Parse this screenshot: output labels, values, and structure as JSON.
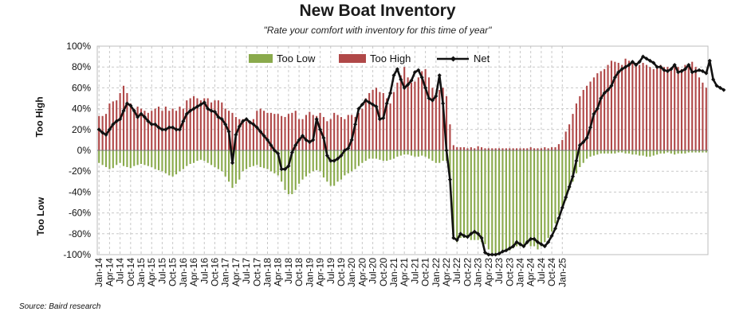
{
  "chart_data": {
    "type": "bar+line",
    "title": "New Boat Inventory",
    "subtitle": "\"Rate your comfort with inventory for this time of year\"",
    "ylabel_top": "Too High",
    "ylabel_bottom": "Too Low",
    "source": "Source: Baird research",
    "ylim": [
      -100,
      100
    ],
    "yticks": [
      100,
      80,
      60,
      40,
      20,
      0,
      -20,
      -40,
      -60,
      -80,
      -100
    ],
    "ytick_labels": [
      "100%",
      "80%",
      "60%",
      "40%",
      "20%",
      "0%",
      "-20%",
      "-40%",
      "-60%",
      "-80%",
      "-100%"
    ],
    "xtick_labels": [
      "Jan-14",
      "Apr-14",
      "Jul-14",
      "Oct-14",
      "Jan-15",
      "Apr-15",
      "Jul-15",
      "Oct-15",
      "Jan-16",
      "Apr-16",
      "Jul-16",
      "Oct-16",
      "Jan-17",
      "Apr-17",
      "Jul-17",
      "Oct-17",
      "Jan-18",
      "Apr-18",
      "Jul-18",
      "Oct-18",
      "Jan-19",
      "Apr-19",
      "Jul-19",
      "Oct-19",
      "Jan-20",
      "Apr-20",
      "Jul-20",
      "Oct-20",
      "Jan-21",
      "Apr-21",
      "Jul-21",
      "Oct-21",
      "Jan-22",
      "Apr-22",
      "Jul-22",
      "Oct-22",
      "Jan-23",
      "Apr-23",
      "Jul-23",
      "Oct-23",
      "Jan-24",
      "Apr-24",
      "Jul-24",
      "Oct-24",
      "Jan-25"
    ],
    "legend": [
      "Too Low",
      "Too High",
      "Net"
    ],
    "grid": true,
    "colors": {
      "too_low": "#8aaa4c",
      "too_high": "#b04848",
      "net": "#111111",
      "grid": "#c8c8c8"
    },
    "start": "Jan-14",
    "x_step": "month",
    "series": [
      {
        "name": "Too High",
        "values": [
          33,
          33,
          35,
          45,
          47,
          48,
          55,
          62,
          55,
          45,
          40,
          42,
          40,
          38,
          36,
          38,
          40,
          42,
          38,
          42,
          38,
          40,
          38,
          42,
          40,
          48,
          50,
          52,
          50,
          48,
          50,
          50,
          46,
          48,
          48,
          46,
          40,
          38,
          36,
          32,
          30,
          30,
          28,
          26,
          30,
          38,
          40,
          38,
          36,
          36,
          35,
          35,
          33,
          32,
          35,
          36,
          38,
          30,
          30,
          34,
          37,
          34,
          33,
          36,
          32,
          28,
          30,
          36,
          34,
          32,
          30,
          34,
          34,
          32,
          36,
          40,
          50,
          55,
          58,
          60,
          56,
          55,
          50,
          45,
          56,
          65,
          72,
          80,
          70,
          65,
          66,
          70,
          76,
          78,
          70,
          60,
          55,
          58,
          60,
          52,
          25,
          5,
          3,
          3,
          3,
          2,
          3,
          2,
          4,
          3,
          2,
          2,
          2,
          2,
          2,
          2,
          2,
          2,
          2,
          2,
          2,
          2,
          2,
          3,
          2,
          2,
          2,
          3,
          2,
          3,
          3,
          6,
          10,
          18,
          25,
          35,
          45,
          52,
          58,
          62,
          66,
          70,
          74,
          76,
          78,
          82,
          86,
          85,
          84,
          82,
          88,
          86,
          85,
          84,
          82,
          84,
          82,
          80,
          78,
          80,
          82,
          80,
          80,
          78,
          80,
          80,
          78,
          82,
          80,
          85,
          80,
          70,
          65,
          60
        ]
      },
      {
        "name": "Too Low",
        "values": [
          -12,
          -14,
          -16,
          -18,
          -17,
          -14,
          -12,
          -15,
          -16,
          -17,
          -15,
          -14,
          -13,
          -14,
          -15,
          -16,
          -18,
          -19,
          -20,
          -22,
          -24,
          -25,
          -23,
          -20,
          -18,
          -15,
          -13,
          -12,
          -10,
          -9,
          -10,
          -12,
          -14,
          -16,
          -18,
          -20,
          -25,
          -30,
          -36,
          -32,
          -28,
          -20,
          -18,
          -16,
          -15,
          -14,
          -16,
          -17,
          -18,
          -20,
          -22,
          -24,
          -30,
          -38,
          -42,
          -42,
          -38,
          -32,
          -28,
          -25,
          -22,
          -20,
          -19,
          -20,
          -26,
          -30,
          -34,
          -34,
          -30,
          -28,
          -24,
          -22,
          -20,
          -18,
          -15,
          -12,
          -10,
          -8,
          -8,
          -8,
          -9,
          -10,
          -10,
          -9,
          -8,
          -6,
          -5,
          -4,
          -4,
          -5,
          -6,
          -6,
          -5,
          -6,
          -8,
          -10,
          -12,
          -12,
          -10,
          -10,
          -30,
          -85,
          -88,
          -84,
          -84,
          -84,
          -86,
          -86,
          -86,
          -88,
          -90,
          -95,
          -100,
          -100,
          -99,
          -98,
          -96,
          -96,
          -94,
          -92,
          -92,
          -90,
          -90,
          -92,
          -92,
          -95,
          -92,
          -88,
          -84,
          -78,
          -70,
          -62,
          -55,
          -48,
          -38,
          -30,
          -22,
          -16,
          -12,
          -8,
          -6,
          -5,
          -4,
          -3,
          -3,
          -3,
          -3,
          -3,
          -2,
          -2,
          -3,
          -3,
          -4,
          -4,
          -5,
          -5,
          -6,
          -6,
          -5,
          -4,
          -3,
          -3,
          -2,
          -3,
          -4,
          -3,
          -3,
          -3,
          -2,
          -2,
          -2,
          -2,
          -2,
          -2
        ]
      },
      {
        "name": "Net",
        "values": [
          20,
          17,
          15,
          20,
          25,
          28,
          30,
          38,
          45,
          43,
          38,
          32,
          35,
          32,
          28,
          25,
          25,
          22,
          20,
          20,
          22,
          22,
          20,
          20,
          28,
          35,
          38,
          40,
          42,
          44,
          46,
          40,
          38,
          37,
          32,
          30,
          25,
          18,
          -12,
          15,
          23,
          28,
          30,
          27,
          25,
          22,
          18,
          14,
          10,
          5,
          0,
          -3,
          -18,
          -18,
          -15,
          -2,
          5,
          10,
          14,
          10,
          8,
          10,
          30,
          20,
          12,
          -5,
          -10,
          -10,
          -8,
          -5,
          0,
          2,
          10,
          25,
          40,
          44,
          48,
          46,
          44,
          42,
          30,
          31,
          45,
          55,
          72,
          78,
          68,
          60,
          63,
          67,
          75,
          77,
          70,
          60,
          50,
          48,
          52,
          72,
          45,
          0,
          -28,
          -84,
          -86,
          -80,
          -82,
          -83,
          -80,
          -78,
          -80,
          -84,
          -98,
          -100,
          -100,
          -100,
          -99,
          -97,
          -96,
          -94,
          -92,
          -88,
          -90,
          -92,
          -88,
          -85,
          -85,
          -88,
          -90,
          -92,
          -88,
          -82,
          -75,
          -65,
          -55,
          -45,
          -35,
          -25,
          -10,
          5,
          8,
          12,
          22,
          35,
          40,
          50,
          55,
          58,
          62,
          70,
          75,
          78,
          80,
          82,
          85,
          82,
          85,
          90,
          88,
          86,
          84,
          80,
          80,
          77,
          76,
          78,
          82,
          75,
          76,
          78,
          82,
          75,
          76,
          77,
          76,
          74,
          86,
          68,
          62,
          60,
          58
        ]
      }
    ]
  }
}
